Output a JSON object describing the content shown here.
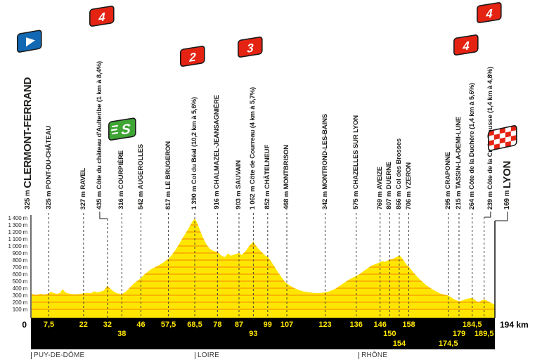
{
  "colors": {
    "yellow": "#FFE600",
    "orange": "#F39800",
    "red": "#E42313",
    "green": "#3FA535",
    "blue": "#1268B3",
    "bar_black": "#000000",
    "dash_line": "#3D3D3D",
    "label_ink": "#1D1D1B"
  },
  "chart_data": {
    "type": "area",
    "x_unit": "km",
    "y_unit": "m",
    "total_km": 194,
    "ylim": [
      0,
      1400
    ],
    "grid": "horizontal-orange-inside-area",
    "y_axis_labels": [
      "1 400 m",
      "1 300 m",
      "1 200 m",
      "1 100 m",
      "1 000 m",
      "900 m",
      "800 m",
      "700 m",
      "600 m",
      "500 m",
      "400 m",
      "300 m",
      "200 m",
      "100 m"
    ],
    "departments": [
      {
        "name": "PUY-DE-DÔME",
        "km": 0
      },
      {
        "name": "LOIRE",
        "km": 68.5
      },
      {
        "name": "RHÔNE",
        "km": 137
      }
    ],
    "waypoints": [
      {
        "km": 0,
        "km_label": "0",
        "elev": "325 m",
        "name": "CLERMONT-FERRAND",
        "terminus": "start"
      },
      {
        "km": 7.5,
        "km_label": "7,5",
        "row": 1,
        "elev": "325 m",
        "name": "PONT-DU-CHÂTEAU"
      },
      {
        "km": 22,
        "km_label": "22",
        "row": 1,
        "elev": "327 m",
        "name": "RAVEL"
      },
      {
        "km": 32,
        "km_label": "32",
        "row": 1,
        "elev": "435 m",
        "name": "Côte du château d'Aulteribe",
        "grade": "(1 km à 8,4%)",
        "category": "4"
      },
      {
        "km": 38,
        "km_label": "38",
        "row": 2,
        "elev": "316 m",
        "name": "COURPIÈRE",
        "sprint": true
      },
      {
        "km": 46,
        "km_label": "46",
        "row": 1,
        "elev": "542 m",
        "name": "AUGEROLLES"
      },
      {
        "km": 57.5,
        "km_label": "57,5",
        "row": 1,
        "elev": "817 m",
        "name": "LE BRUGERON"
      },
      {
        "km": 68.5,
        "km_label": "68,5",
        "row": 1,
        "elev": "1 390 m",
        "name": "Col du Béal",
        "grade": "(10,2 km à 5,6%)",
        "category": "2"
      },
      {
        "km": 78,
        "km_label": "78",
        "row": 1,
        "elev": "916 m",
        "name": "CHALMAZEL-JEANSAGNIÈRE"
      },
      {
        "km": 87,
        "km_label": "87",
        "row": 1,
        "elev": "903 m",
        "name": "SAUVAIN"
      },
      {
        "km": 93,
        "km_label": "93",
        "row": 2,
        "elev": "1 062 m",
        "name": "Côte de Courreau",
        "grade": "(4 km à 5,7%)",
        "category": "3"
      },
      {
        "km": 99,
        "km_label": "99",
        "row": 1,
        "elev": "852 m",
        "name": "CHÂTELNEUF"
      },
      {
        "km": 107,
        "km_label": "107",
        "row": 1,
        "elev": "468 m",
        "name": "MONTBRISON"
      },
      {
        "km": 123,
        "km_label": "123",
        "row": 1,
        "elev": "342 m",
        "name": "MONTROND-LES-BAINS"
      },
      {
        "km": 136,
        "km_label": "136",
        "row": 1,
        "elev": "575 m",
        "name": "CHAZELLES SUR LYON"
      },
      {
        "km": 146,
        "km_label": "146",
        "row": 1,
        "elev": "769 m",
        "name": "AVEIZE"
      },
      {
        "km": 150,
        "km_label": "150",
        "row": 2,
        "elev": "807 m",
        "name": "DUERNE"
      },
      {
        "km": 154,
        "km_label": "154",
        "row": 3,
        "elev": "866 m",
        "name": "Col des Brosses"
      },
      {
        "km": 158,
        "km_label": "158",
        "row": 1,
        "elev": "706 m",
        "name": "YZERON"
      },
      {
        "km": 174.5,
        "km_label": "174,5",
        "row": 3,
        "elev": "295 m",
        "name": "CRAPONNE"
      },
      {
        "km": 179,
        "km_label": "179",
        "row": 2,
        "elev": "215 m",
        "name": "TASSIN-LA-DEMI-LUNE"
      },
      {
        "km": 184.5,
        "km_label": "184,5",
        "row": 1,
        "elev": "264 m",
        "name": "Côte de la Duchère",
        "grade": "(1,4 km à 5,6%)",
        "category": "4"
      },
      {
        "km": 189.5,
        "km_label": "189,5",
        "row": 2,
        "elev": "239 m",
        "name": "Côte de la Croix-Rousse",
        "grade": "(1,4 km à 4,8%)",
        "category": "4"
      },
      {
        "km": 194,
        "km_label": "194 km",
        "elev": "169 m",
        "name": "LYON",
        "terminus": "finish"
      }
    ],
    "profile": [
      [
        0,
        325
      ],
      [
        1,
        312
      ],
      [
        2.5,
        306
      ],
      [
        4,
        320
      ],
      [
        5.5,
        310
      ],
      [
        7.5,
        325
      ],
      [
        8.3,
        352
      ],
      [
        9.3,
        332
      ],
      [
        11,
        320
      ],
      [
        12.3,
        335
      ],
      [
        13.3,
        388
      ],
      [
        14.3,
        342
      ],
      [
        16,
        322
      ],
      [
        18,
        314
      ],
      [
        20,
        318
      ],
      [
        22,
        327
      ],
      [
        23.5,
        334
      ],
      [
        25,
        328
      ],
      [
        26.5,
        356
      ],
      [
        27.5,
        342
      ],
      [
        29,
        350
      ],
      [
        30.5,
        368
      ],
      [
        32,
        435
      ],
      [
        33,
        398
      ],
      [
        34.5,
        356
      ],
      [
        36,
        328
      ],
      [
        38,
        316
      ],
      [
        39.5,
        345
      ],
      [
        41,
        395
      ],
      [
        42.5,
        450
      ],
      [
        44.5,
        505
      ],
      [
        46,
        542
      ],
      [
        47.5,
        598
      ],
      [
        49,
        638
      ],
      [
        50.5,
        676
      ],
      [
        52,
        700
      ],
      [
        53.5,
        728
      ],
      [
        55,
        758
      ],
      [
        56.2,
        788
      ],
      [
        57.5,
        817
      ],
      [
        59,
        878
      ],
      [
        60.5,
        948
      ],
      [
        62,
        1028
      ],
      [
        63.5,
        1118
      ],
      [
        65,
        1198
      ],
      [
        66.5,
        1288
      ],
      [
        67.5,
        1348
      ],
      [
        68.5,
        1390
      ],
      [
        69.3,
        1345
      ],
      [
        70.5,
        1240
      ],
      [
        72,
        1115
      ],
      [
        73.5,
        1015
      ],
      [
        75,
        955
      ],
      [
        76.5,
        928
      ],
      [
        78,
        916
      ],
      [
        79.5,
        868
      ],
      [
        81,
        842
      ],
      [
        82.5,
        896
      ],
      [
        83.5,
        862
      ],
      [
        85,
        878
      ],
      [
        87,
        903
      ],
      [
        88,
        872
      ],
      [
        89.5,
        918
      ],
      [
        91,
        988
      ],
      [
        92,
        1028
      ],
      [
        93,
        1062
      ],
      [
        94,
        1008
      ],
      [
        95.5,
        948
      ],
      [
        97,
        898
      ],
      [
        98,
        862
      ],
      [
        99,
        852
      ],
      [
        100.5,
        778
      ],
      [
        102,
        698
      ],
      [
        103.5,
        618
      ],
      [
        105,
        548
      ],
      [
        106,
        498
      ],
      [
        107,
        468
      ],
      [
        108.5,
        432
      ],
      [
        110,
        404
      ],
      [
        112,
        374
      ],
      [
        114,
        354
      ],
      [
        116,
        344
      ],
      [
        118,
        334
      ],
      [
        120,
        330
      ],
      [
        121.5,
        334
      ],
      [
        123,
        342
      ],
      [
        124.5,
        352
      ],
      [
        126,
        372
      ],
      [
        127.5,
        396
      ],
      [
        129,
        432
      ],
      [
        130.5,
        466
      ],
      [
        132,
        500
      ],
      [
        133.5,
        532
      ],
      [
        135,
        558
      ],
      [
        136,
        575
      ],
      [
        137.5,
        602
      ],
      [
        139,
        642
      ],
      [
        140.5,
        676
      ],
      [
        142,
        712
      ],
      [
        143.5,
        736
      ],
      [
        145,
        756
      ],
      [
        146,
        769
      ],
      [
        147,
        786
      ],
      [
        148,
        774
      ],
      [
        149,
        790
      ],
      [
        150,
        807
      ],
      [
        151,
        814
      ],
      [
        152,
        828
      ],
      [
        153,
        848
      ],
      [
        154,
        866
      ],
      [
        155,
        838
      ],
      [
        156,
        788
      ],
      [
        157,
        738
      ],
      [
        158,
        706
      ],
      [
        159.5,
        642
      ],
      [
        161,
        582
      ],
      [
        163,
        512
      ],
      [
        165,
        452
      ],
      [
        167,
        402
      ],
      [
        169,
        362
      ],
      [
        171,
        326
      ],
      [
        173,
        306
      ],
      [
        174.5,
        295
      ],
      [
        176,
        262
      ],
      [
        177.5,
        232
      ],
      [
        179,
        215
      ],
      [
        180.5,
        226
      ],
      [
        182,
        248
      ],
      [
        183.5,
        258
      ],
      [
        184.5,
        264
      ],
      [
        185.5,
        236
      ],
      [
        186.5,
        212
      ],
      [
        187.3,
        200
      ],
      [
        188.3,
        224
      ],
      [
        189.5,
        239
      ],
      [
        190.5,
        226
      ],
      [
        191.5,
        206
      ],
      [
        192.5,
        190
      ],
      [
        193.3,
        178
      ],
      [
        194,
        169
      ]
    ]
  }
}
